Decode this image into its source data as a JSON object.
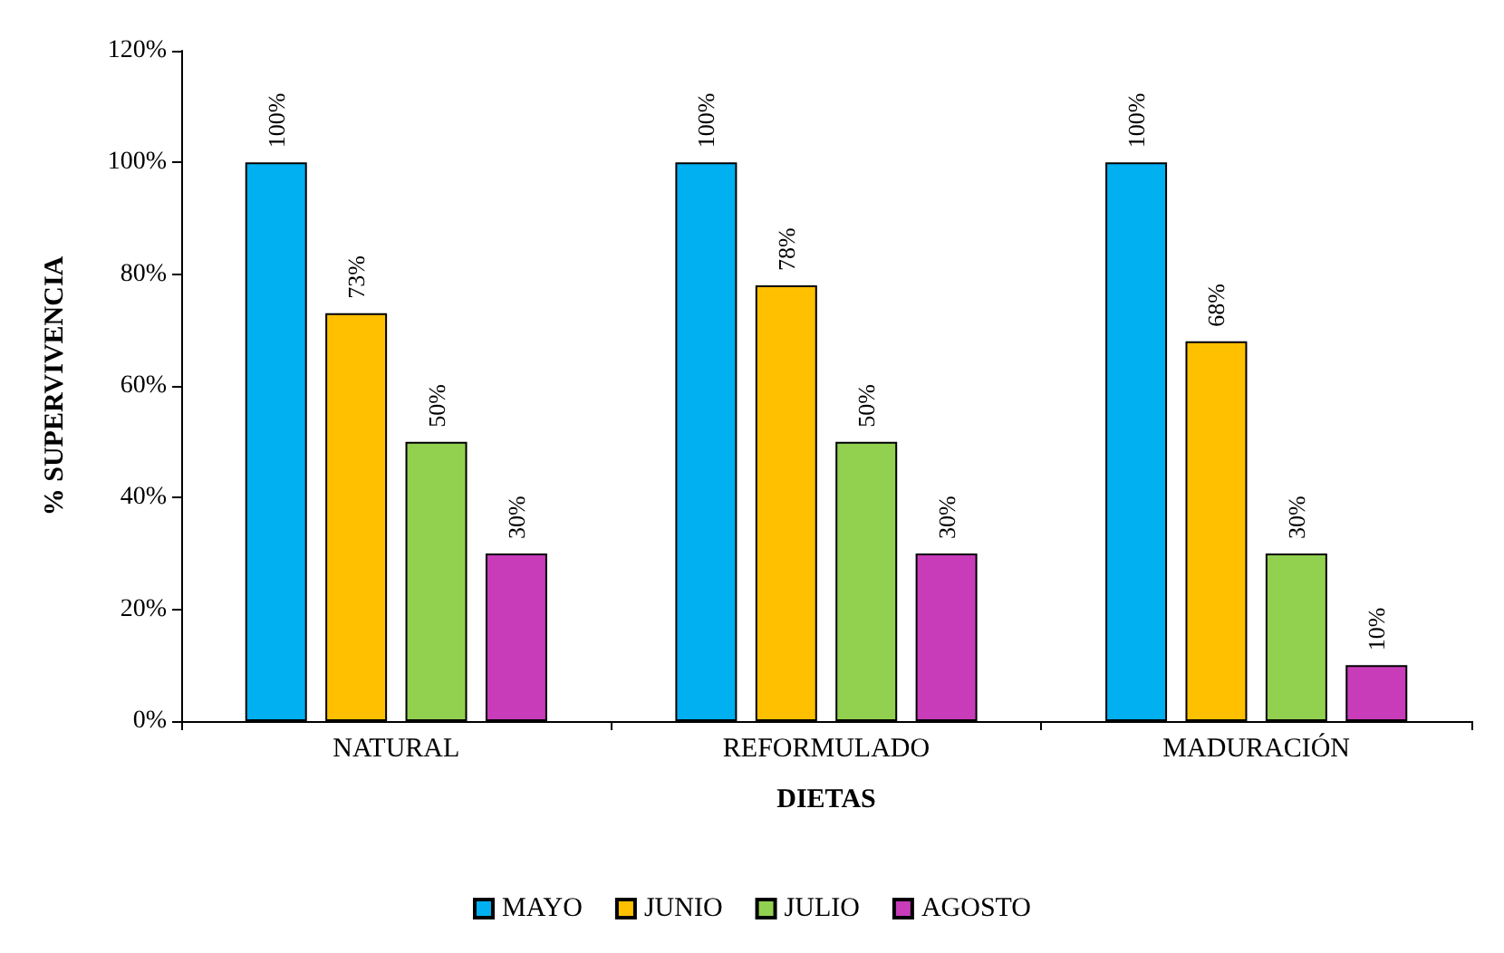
{
  "chart_data": {
    "type": "bar",
    "xlabel": "DIETAS",
    "ylabel": "% SUPERVIVENCIA",
    "categories": [
      "NATURAL",
      "REFORMULADO",
      "MADURACIÓN"
    ],
    "series": [
      {
        "name": "MAYO",
        "color": "#00b0f0",
        "values": [
          100,
          100,
          100
        ],
        "value_labels": [
          "100%",
          "100%",
          "100%"
        ]
      },
      {
        "name": "JUNIO",
        "color": "#ffc000",
        "values": [
          73,
          78,
          68
        ],
        "value_labels": [
          "73%",
          "78%",
          "68%"
        ]
      },
      {
        "name": "JULIO",
        "color": "#92d050",
        "values": [
          50,
          50,
          30
        ],
        "value_labels": [
          "50%",
          "50%",
          "30%"
        ]
      },
      {
        "name": "AGOSTO",
        "color": "#c83cb9",
        "values": [
          30,
          30,
          10
        ],
        "value_labels": [
          "30%",
          "30%",
          "10%"
        ]
      }
    ],
    "ylim": [
      0,
      120
    ],
    "yticks": [
      {
        "value": 0,
        "label": "0%"
      },
      {
        "value": 20,
        "label": "20%"
      },
      {
        "value": 40,
        "label": "40%"
      },
      {
        "value": 60,
        "label": "60%"
      },
      {
        "value": 80,
        "label": "80%"
      },
      {
        "value": 100,
        "label": "100%"
      },
      {
        "value": 120,
        "label": "120%"
      }
    ],
    "grid": false,
    "legend": "bottom"
  }
}
